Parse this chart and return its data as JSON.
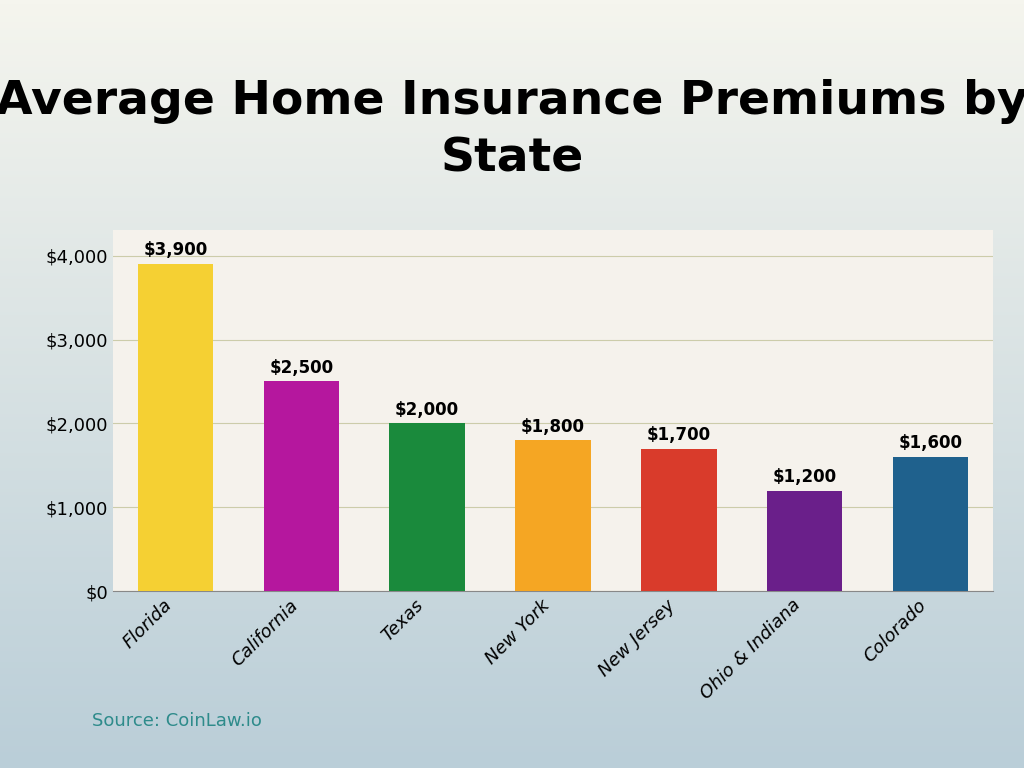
{
  "title": "Average Home Insurance Premiums by\nState",
  "categories": [
    "Florida",
    "California",
    "Texas",
    "New York",
    "New Jersey",
    "Ohio & Indiana",
    "Colorado"
  ],
  "values": [
    3900,
    2500,
    2000,
    1800,
    1700,
    1200,
    1600
  ],
  "bar_colors": [
    "#F5D033",
    "#B5179E",
    "#1A8A3C",
    "#F5A623",
    "#D93B2B",
    "#6A1F8A",
    "#1F618D"
  ],
  "value_labels": [
    "$3,900",
    "$2,500",
    "$2,000",
    "$1,800",
    "$1,700",
    "$1,200",
    "$1,600"
  ],
  "ytick_labels": [
    "$0",
    "$1,000",
    "$2,000",
    "$3,000",
    "$4,000"
  ],
  "ytick_values": [
    0,
    1000,
    2000,
    3000,
    4000
  ],
  "ylim": [
    0,
    4300
  ],
  "source_text": "Source: CoinLaw.io",
  "title_fontsize": 34,
  "value_fontsize": 12,
  "source_fontsize": 13,
  "tick_fontsize": 13
}
